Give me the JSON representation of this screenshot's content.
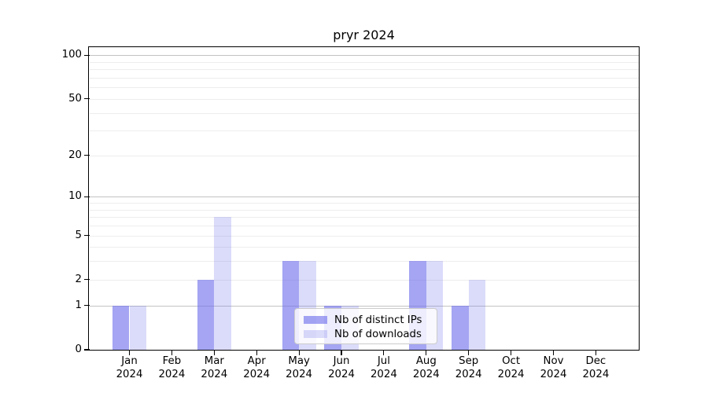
{
  "title": "pryr 2024",
  "chart_data": {
    "type": "bar",
    "title": "pryr 2024",
    "categories": [
      "Jan 2024",
      "Feb 2024",
      "Mar 2024",
      "Apr 2024",
      "May 2024",
      "Jun 2024",
      "Jul 2024",
      "Aug 2024",
      "Sep 2024",
      "Oct 2024",
      "Nov 2024",
      "Dec 2024"
    ],
    "series": [
      {
        "name": "Nb of distinct IPs",
        "values": [
          1,
          0,
          2,
          0,
          3,
          1,
          0,
          3,
          1,
          0,
          0,
          0
        ],
        "color": "rgba(110,110,235,0.62)",
        "color_hex": "#a5a5f0"
      },
      {
        "name": "Nb of downloads",
        "values": [
          1,
          0,
          7,
          0,
          3,
          1,
          0,
          3,
          2,
          0,
          0,
          0
        ],
        "color": "rgba(110,110,235,0.25)",
        "color_hex": "#dbdbfa"
      }
    ],
    "xlabel": "",
    "ylabel": "",
    "y_scale": "log1p",
    "y_tick_values": [
      0,
      1,
      2,
      5,
      10,
      20,
      50,
      100
    ],
    "y_minor_gridlines": [
      2,
      3,
      4,
      5,
      6,
      7,
      8,
      9,
      20,
      30,
      40,
      50,
      60,
      70,
      80,
      90
    ],
    "y_major_gridlines": [
      1,
      10,
      100
    ],
    "ylim": [
      0,
      114
    ],
    "grid": true,
    "legend_position": "lower center"
  },
  "colors": {
    "background": "#ffffff",
    "grid_major": "#c3c3c3",
    "grid_minor": "#ededed",
    "axis": "#000000",
    "legend_border": "#cccccc"
  }
}
